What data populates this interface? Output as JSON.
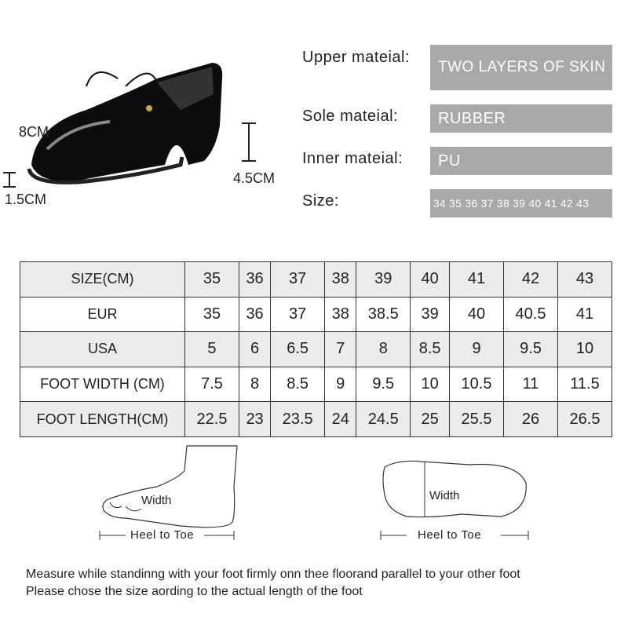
{
  "shoe": {
    "height_label": "8CM",
    "heel_label": "4.5CM",
    "platform_label": "1.5CM"
  },
  "specs": [
    {
      "label": "Upper mateial:",
      "value": "TWO LAYERS OF SKIN"
    },
    {
      "label": "Sole mateial:",
      "value": "RUBBER"
    },
    {
      "label": "Inner mateial:",
      "value": "PU"
    },
    {
      "label": "Size:",
      "value": "34 35 36 37 38 39 40 41 42 43"
    }
  ],
  "size_table": {
    "rows": [
      {
        "header": "SIZE(CM)",
        "values": [
          "35",
          "36",
          "37",
          "38",
          "39",
          "40",
          "41",
          "42",
          "43"
        ]
      },
      {
        "header": "EUR",
        "values": [
          "35",
          "36",
          "37",
          "38",
          "38.5",
          "39",
          "40",
          "40.5",
          "41"
        ]
      },
      {
        "header": "USA",
        "values": [
          "5",
          "6",
          "6.5",
          "7",
          "8",
          "8.5",
          "9",
          "9.5",
          "10"
        ]
      },
      {
        "header": "FOOT WIDTH (CM)",
        "values": [
          "7.5",
          "8",
          "8.5",
          "9",
          "9.5",
          "10",
          "10.5",
          "11",
          "11.5"
        ]
      },
      {
        "header": "FOOT LENGTH(CM)",
        "values": [
          "22.5",
          "23",
          "23.5",
          "24",
          "24.5",
          "25",
          "25.5",
          "26",
          "26.5"
        ]
      }
    ]
  },
  "diagrams": {
    "side": {
      "width": "Width",
      "length": "Heel to Toe"
    },
    "top": {
      "width": "Width",
      "length": "Heel to Toe"
    }
  },
  "notes": [
    "Measure while standinng with your foot firmly onn thee floorand parallel to your other foot",
    "Please chose the size aording to the actual length of the foot"
  ],
  "colors": {
    "box": "#a9a9a9",
    "row_gray": "#ebebeb"
  }
}
